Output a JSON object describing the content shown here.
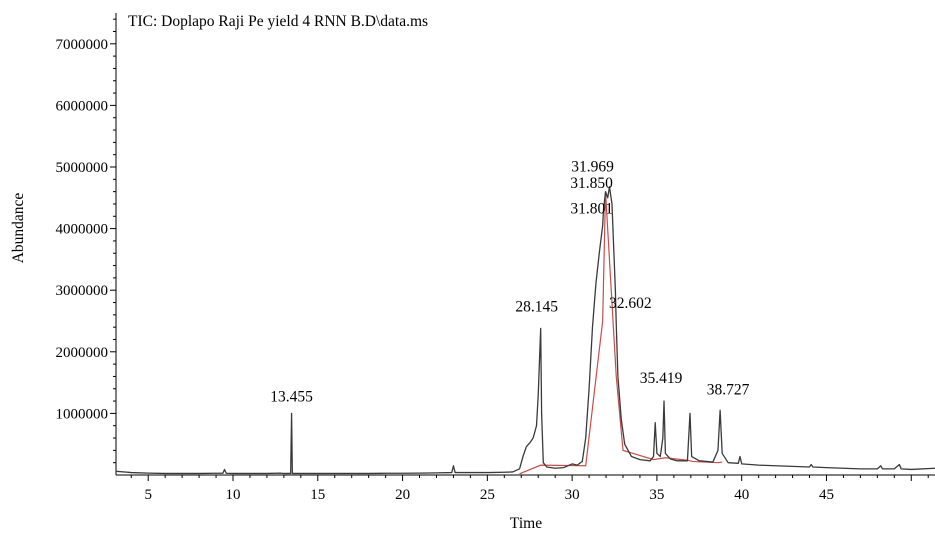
{
  "chart_data": {
    "type": "line",
    "title": "TIC: Doplapo Raji Pe yield 4 RNN B.D\\data.ms",
    "xlabel": "Time",
    "ylabel": "Abundance",
    "xlim": [
      3.1,
      51.4
    ],
    "ylim": [
      0,
      7500000
    ],
    "x_ticks": [
      5,
      10,
      15,
      20,
      25,
      30,
      35,
      40,
      45
    ],
    "x_tick_labels": [
      "5",
      "10",
      "15",
      "20",
      "25",
      "30",
      "35",
      "40",
      "45"
    ],
    "y_ticks": [
      1000000,
      2000000,
      3000000,
      4000000,
      5000000,
      6000000,
      7000000
    ],
    "y_tick_labels": [
      "1000000",
      "2000000",
      "3000000",
      "4000000",
      "5000000",
      "6000000",
      "7000000"
    ],
    "grid": false,
    "line_color": "#3a3a3a",
    "baseline_color": "#c0504d",
    "series": [
      {
        "points": [
          [
            3.1,
            60000
          ],
          [
            4.0,
            40000
          ],
          [
            5.0,
            30000
          ],
          [
            6.0,
            25000
          ],
          [
            7.0,
            25000
          ],
          [
            8.0,
            25000
          ],
          [
            9.0,
            28000
          ],
          [
            9.4,
            28000
          ],
          [
            9.5,
            90000
          ],
          [
            9.6,
            28000
          ],
          [
            10.0,
            25000
          ],
          [
            11.0,
            25000
          ],
          [
            12.0,
            25000
          ],
          [
            12.8,
            30000
          ],
          [
            13.0,
            25000
          ],
          [
            13.4,
            25000
          ],
          [
            13.455,
            1000000
          ],
          [
            13.5,
            25000
          ],
          [
            14.0,
            25000
          ],
          [
            15.0,
            25000
          ],
          [
            16.0,
            25000
          ],
          [
            17.0,
            25000
          ],
          [
            18.0,
            25000
          ],
          [
            19.0,
            28000
          ],
          [
            20.0,
            28000
          ],
          [
            21.0,
            30000
          ],
          [
            22.0,
            35000
          ],
          [
            22.9,
            40000
          ],
          [
            23.0,
            150000
          ],
          [
            23.1,
            40000
          ],
          [
            24.0,
            40000
          ],
          [
            25.0,
            40000
          ],
          [
            26.0,
            45000
          ],
          [
            26.5,
            50000
          ],
          [
            26.9,
            100000
          ],
          [
            27.1,
            300000
          ],
          [
            27.3,
            460000
          ],
          [
            27.5,
            520000
          ],
          [
            27.7,
            600000
          ],
          [
            27.9,
            800000
          ],
          [
            28.0,
            1300000
          ],
          [
            28.145,
            2380000
          ],
          [
            28.2,
            1000000
          ],
          [
            28.3,
            200000
          ],
          [
            28.5,
            130000
          ],
          [
            29.0,
            110000
          ],
          [
            29.5,
            120000
          ],
          [
            30.0,
            180000
          ],
          [
            30.3,
            160000
          ],
          [
            30.6,
            220000
          ],
          [
            30.8,
            600000
          ],
          [
            31.0,
            1400000
          ],
          [
            31.2,
            2400000
          ],
          [
            31.4,
            3100000
          ],
          [
            31.6,
            3600000
          ],
          [
            31.801,
            4050000
          ],
          [
            31.85,
            4300000
          ],
          [
            31.969,
            4600000
          ],
          [
            32.1,
            4500000
          ],
          [
            32.2,
            4680000
          ],
          [
            32.35,
            4400000
          ],
          [
            32.45,
            3700000
          ],
          [
            32.55,
            3000000
          ],
          [
            32.602,
            2450000
          ],
          [
            32.7,
            1600000
          ],
          [
            32.9,
            900000
          ],
          [
            33.1,
            500000
          ],
          [
            33.5,
            300000
          ],
          [
            34.0,
            250000
          ],
          [
            34.6,
            230000
          ],
          [
            34.8,
            300000
          ],
          [
            34.9,
            850000
          ],
          [
            35.0,
            350000
          ],
          [
            35.2,
            300000
          ],
          [
            35.35,
            600000
          ],
          [
            35.419,
            1200000
          ],
          [
            35.5,
            350000
          ],
          [
            35.8,
            260000
          ],
          [
            36.2,
            230000
          ],
          [
            36.8,
            230000
          ],
          [
            36.95,
            1000000
          ],
          [
            37.05,
            300000
          ],
          [
            37.5,
            230000
          ],
          [
            38.3,
            210000
          ],
          [
            38.6,
            400000
          ],
          [
            38.727,
            1050000
          ],
          [
            38.85,
            350000
          ],
          [
            39.2,
            200000
          ],
          [
            39.8,
            190000
          ],
          [
            39.9,
            300000
          ],
          [
            40.0,
            180000
          ],
          [
            41.0,
            160000
          ],
          [
            42.0,
            150000
          ],
          [
            43.0,
            140000
          ],
          [
            44.0,
            130000
          ],
          [
            44.1,
            170000
          ],
          [
            44.2,
            130000
          ],
          [
            45.0,
            120000
          ],
          [
            46.0,
            110000
          ],
          [
            47.0,
            100000
          ],
          [
            48.0,
            100000
          ],
          [
            48.2,
            150000
          ],
          [
            48.3,
            100000
          ],
          [
            49.0,
            100000
          ],
          [
            49.3,
            170000
          ],
          [
            49.4,
            100000
          ],
          [
            50.0,
            90000
          ],
          [
            51.4,
            110000
          ]
        ]
      }
    ],
    "integration_baseline": [
      [
        26.9,
        20000
      ],
      [
        28.145,
        160000
      ],
      [
        30.8,
        150000
      ],
      [
        31.801,
        2500000
      ],
      [
        31.969,
        4600000
      ],
      [
        32.602,
        1600000
      ],
      [
        33.0,
        400000
      ],
      [
        34.8,
        250000
      ],
      [
        35.5,
        280000
      ],
      [
        36.8,
        240000
      ],
      [
        37.1,
        220000
      ],
      [
        38.6,
        200000
      ],
      [
        38.85,
        210000
      ]
    ],
    "peak_labels": [
      {
        "label": "13.455",
        "x": 13.455,
        "y": 1000000
      },
      {
        "label": "28.145",
        "x": 28.145,
        "y": 2380000
      },
      {
        "label": "31.969",
        "x": 31.969,
        "y": 4600000
      },
      {
        "label": "31.850",
        "x": 31.85,
        "y": 4300000
      },
      {
        "label": "31.801",
        "x": 31.801,
        "y": 4050000
      },
      {
        "label": "32.602",
        "x": 32.602,
        "y": 2450000
      },
      {
        "label": "35.419",
        "x": 35.419,
        "y": 1200000
      },
      {
        "label": "38.727",
        "x": 38.727,
        "y": 1050000
      }
    ]
  }
}
